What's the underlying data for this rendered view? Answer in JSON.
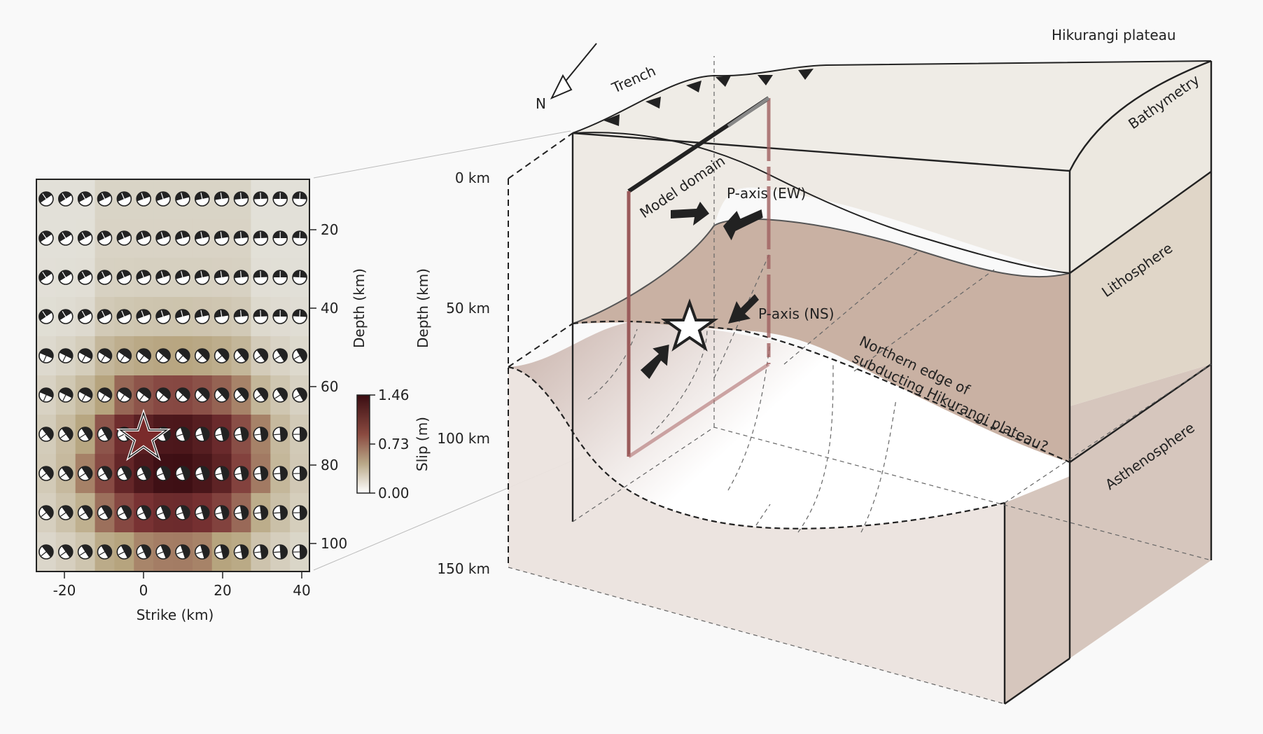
{
  "left_panel": {
    "depth_ticks": [
      "20",
      "40",
      "60",
      "80",
      "100"
    ],
    "strike_ticks": [
      "-20",
      "0",
      "20",
      "40"
    ],
    "depth_axis_label": "Depth (km)",
    "strike_axis_label": "Strike (km)",
    "colorbar": {
      "label": "Slip (m)",
      "ticks": [
        "1.46",
        "0.73",
        "0.00"
      ],
      "low_color": "#ffffff",
      "high_color": "#3a0d12"
    }
  },
  "diagram": {
    "depth_labels": [
      "0 km",
      "50 km",
      "100 km",
      "150 km"
    ],
    "depth_axis_label": "Depth (km)",
    "north_label": "N",
    "trench_label": "Trench",
    "plateau_label": "Hikurangi plateau",
    "bathymetry_label": "Bathymetry",
    "lithosphere_label": "Lithosphere",
    "asthenosphere_label": "Asthenosphere",
    "model_domain_label": "Model domain",
    "p_axis_ew_label": "P-axis (EW)",
    "p_axis_ns_label": "P-axis (NS)",
    "edge_label_line1": "Northern edge of",
    "edge_label_line2": "subducting Hikurangi plateau?"
  },
  "colors": {
    "lithosphere": "#c9b4a6",
    "asthenosphere": "#d6c6bd",
    "slab": "#8a4a4a",
    "outline": "#222222"
  }
}
